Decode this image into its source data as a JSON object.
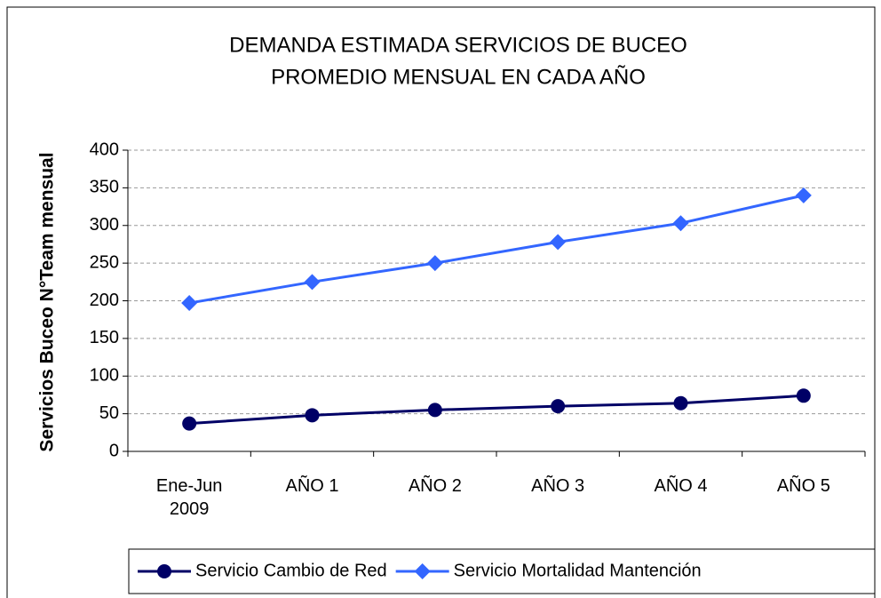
{
  "chart_data": {
    "type": "line",
    "title_lines": [
      "DEMANDA ESTIMADA SERVICIOS DE BUCEO",
      "PROMEDIO MENSUAL EN CADA AÑO"
    ],
    "y_label": "Servicios Buceo N°Team mensual",
    "categories": [
      "Ene-Jun 2009",
      "AÑO 1",
      "AÑO 2",
      "AÑO 3",
      "AÑO 4",
      "AÑO 5"
    ],
    "series": [
      {
        "name": "Servicio Cambio de Red",
        "color": "#000066",
        "marker": "circle",
        "values": [
          37,
          48,
          55,
          60,
          64,
          74
        ]
      },
      {
        "name": "Servicio Mortalidad Mantención",
        "color": "#3366ff",
        "marker": "diamond",
        "values": [
          197,
          225,
          250,
          278,
          303,
          340
        ]
      }
    ],
    "ylim": [
      0,
      400
    ],
    "yticks": [
      0,
      50,
      100,
      150,
      200,
      250,
      300,
      350,
      400
    ],
    "grid": true,
    "legend": "bottom"
  }
}
